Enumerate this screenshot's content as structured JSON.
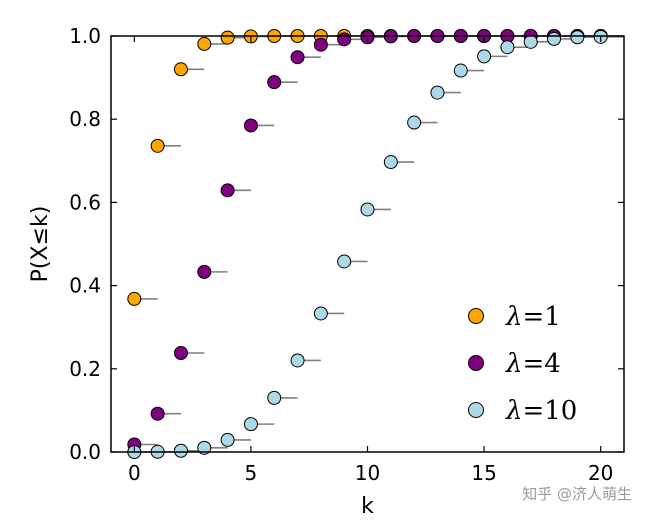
{
  "chart_data": {
    "type": "scatter",
    "title": "",
    "xlabel": "k",
    "ylabel": "P(X≤k)",
    "xlim": [
      -1,
      21
    ],
    "ylim": [
      0,
      1
    ],
    "xticks": [
      0,
      5,
      10,
      15,
      20
    ],
    "xtick_labels": [
      "0",
      "5",
      "10",
      "15",
      "20"
    ],
    "yticks": [
      0,
      0.2,
      0.4,
      0.6,
      0.8,
      1.0
    ],
    "ytick_labels": [
      "0.0",
      "0.2",
      "0.4",
      "0.6",
      "0.8",
      "1.0"
    ],
    "grid": false,
    "legend_position": "lower-right",
    "marker": "circle with horizontal step segment to k+1",
    "series": [
      {
        "name": "λ = 1",
        "color": "#ffa500",
        "x": [
          0,
          1,
          2,
          3,
          4,
          5,
          6,
          7,
          8,
          9,
          10,
          11,
          12,
          13,
          14,
          15,
          16,
          17,
          18,
          19,
          20
        ],
        "y": [
          0.368,
          0.736,
          0.92,
          0.981,
          0.996,
          0.999,
          1.0,
          1.0,
          1.0,
          1.0,
          1.0,
          1.0,
          1.0,
          1.0,
          1.0,
          1.0,
          1.0,
          1.0,
          1.0,
          1.0,
          1.0
        ]
      },
      {
        "name": "λ = 4",
        "color": "#800080",
        "x": [
          0,
          1,
          2,
          3,
          4,
          5,
          6,
          7,
          8,
          9,
          10,
          11,
          12,
          13,
          14,
          15,
          16,
          17,
          18,
          19,
          20
        ],
        "y": [
          0.018,
          0.092,
          0.238,
          0.433,
          0.629,
          0.785,
          0.889,
          0.949,
          0.979,
          0.992,
          0.997,
          0.999,
          1.0,
          1.0,
          1.0,
          1.0,
          1.0,
          1.0,
          1.0,
          1.0,
          1.0
        ]
      },
      {
        "name": "λ = 10",
        "color": "#add8e6",
        "x": [
          0,
          1,
          2,
          3,
          4,
          5,
          6,
          7,
          8,
          9,
          10,
          11,
          12,
          13,
          14,
          15,
          16,
          17,
          18,
          19,
          20
        ],
        "y": [
          0.0,
          0.0005,
          0.003,
          0.01,
          0.029,
          0.067,
          0.13,
          0.22,
          0.333,
          0.458,
          0.583,
          0.697,
          0.792,
          0.864,
          0.917,
          0.951,
          0.973,
          0.986,
          0.993,
          0.997,
          0.998
        ]
      }
    ],
    "legend_entries": [
      {
        "symbol": "λ",
        "text": "=1"
      },
      {
        "symbol": "λ",
        "text": "=4"
      },
      {
        "symbol": "λ",
        "text": "=10"
      }
    ]
  },
  "watermark": "知乎 @济人萌生"
}
